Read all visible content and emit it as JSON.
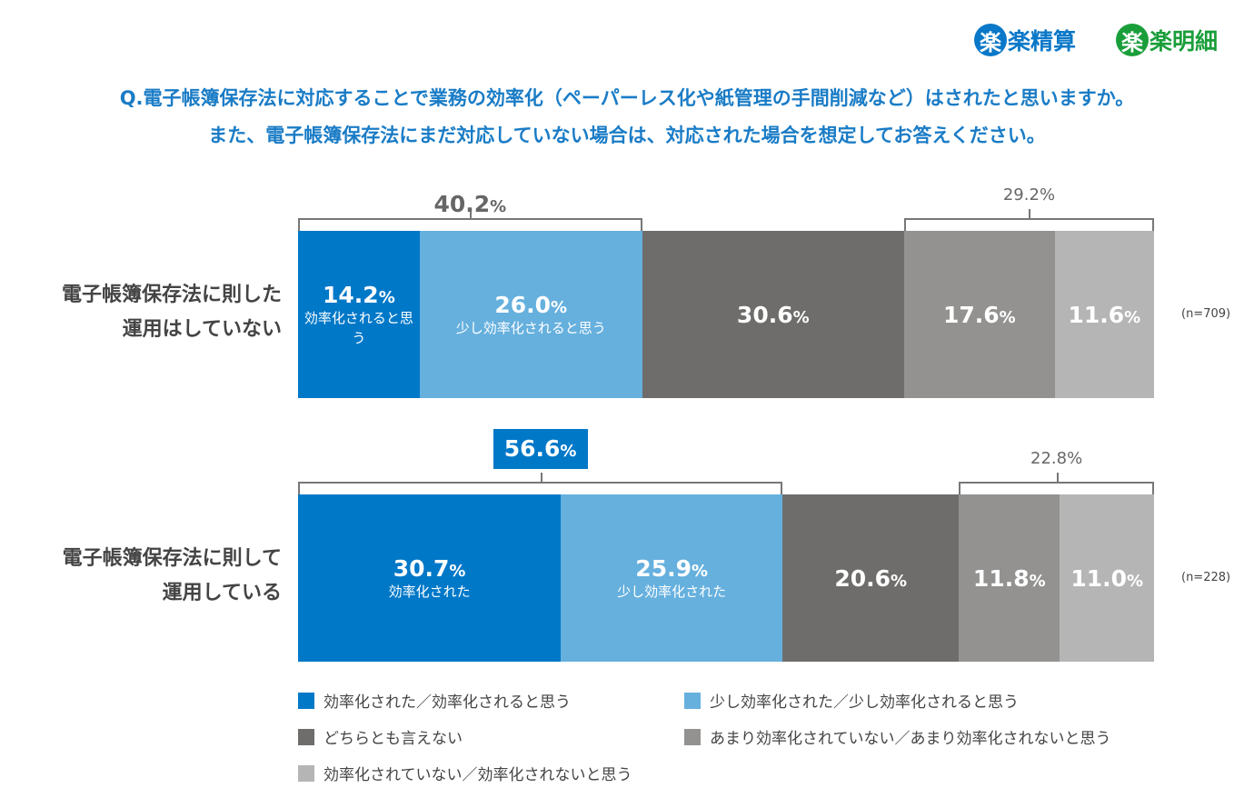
{
  "logos": [
    {
      "mark": "楽",
      "text": "楽精算",
      "color": "#0a78c8"
    },
    {
      "mark": "楽",
      "text": "楽明細",
      "color": "#1a9e3a"
    }
  ],
  "question": [
    "Q.電子帳簿保存法に対応することで業務の効率化（ペーパーレス化や紙管理の手間削減など）はされたと思いますか。",
    "また、電子帳簿保存法にまだ対応していない場合は、対応された場合を想定してお答えください。"
  ],
  "chart_data": {
    "type": "bar",
    "orientation": "horizontal",
    "stacked": true,
    "unit": "%",
    "colors": [
      "#0078c8",
      "#66b0de",
      "#6e6d6b",
      "#939291",
      "#b5b5b5"
    ],
    "legend": [
      "効率化された／効率化されると思う",
      "少し効率化された／少し効率化されると思う",
      "どちらとも言えない",
      "あまり効率化されていない／あまり効率化されないと思う",
      "効率化されていない／効率化されないと思う"
    ],
    "rows": [
      {
        "label": [
          "電子帳簿保存法に則した",
          "運用はしていない"
        ],
        "n": "(n=709)",
        "values": [
          14.2,
          26.0,
          30.6,
          17.6,
          11.6
        ],
        "segment_labels": [
          "効率化されると思う",
          "少し効率化されると思う",
          "",
          "",
          ""
        ],
        "positive_total": "40.2",
        "negative_total": "29.2%"
      },
      {
        "label": [
          "電子帳簿保存法に則して",
          "運用している"
        ],
        "n": "(n=228)",
        "values": [
          30.7,
          25.9,
          20.6,
          11.8,
          11.0
        ],
        "segment_labels": [
          "効率化された",
          "少し効率化された",
          "",
          "",
          ""
        ],
        "positive_total": "56.6",
        "negative_total": "22.8%"
      }
    ]
  }
}
